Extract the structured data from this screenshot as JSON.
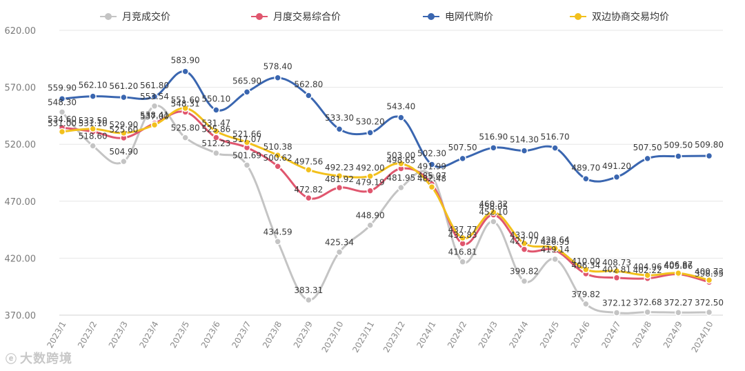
{
  "chart_data": {
    "type": "line",
    "title": "",
    "xlabel": "",
    "ylabel": "",
    "ylim": [
      370,
      620
    ],
    "yticks": [
      "370.00",
      "420.00",
      "470.00",
      "520.00",
      "570.00",
      "620.00"
    ],
    "categories": [
      "2023/1",
      "2023/2",
      "2023/3",
      "2023/4",
      "2023/5",
      "2023/6",
      "2023/7",
      "2023/8",
      "2023/9",
      "2023/10",
      "2023/11",
      "2023/12",
      "2024/1",
      "2024/2",
      "2024/3",
      "2024/4",
      "2024/5",
      "2024/6",
      "2024/7",
      "2024/8",
      "2024/9",
      "2024/10"
    ],
    "legend_position": "top",
    "series": [
      {
        "name": "月竞成交价",
        "color": "#c4c4c4",
        "values": [
          548.3,
          518.6,
          504.9,
          553.54,
          525.8,
          512.23,
          501.69,
          434.59,
          383.31,
          425.34,
          448.9,
          481.95,
          491.99,
          416.81,
          452.1,
          399.82,
          419.14,
          379.82,
          372.12,
          372.68,
          372.27,
          372.5
        ],
        "labels": [
          "548.30",
          "518.60",
          "504.90",
          "553.54",
          "525.80",
          "512.23",
          "501.69",
          "434.59",
          "383.31",
          "425.34",
          "448.90",
          "481.95",
          "491.99",
          "416.81",
          "452.10",
          "399.82",
          "419.14",
          "379.82",
          "372.12",
          "372.68",
          "372.27",
          "372.50"
        ]
      },
      {
        "name": "月度交易综合价",
        "color": "#e0566e",
        "values": [
          534.6,
          531.1,
          525.6,
          538.41,
          548.31,
          525.86,
          517.07,
          500.62,
          472.82,
          481.92,
          479.19,
          498.65,
          485.07,
          432.83,
          458.05,
          427.77,
          426.95,
          406.34,
          402.81,
          402.22,
          405.86,
          398.95
        ],
        "labels": [
          "534.60",
          "531.10",
          "525.60",
          "538.41",
          "548.31",
          "525.86",
          "517.07",
          "500.62",
          "472.82",
          "481.92",
          "479.19",
          "498.65",
          "485.07",
          "432.83",
          "458.05",
          "427.77",
          "426.95",
          "406.34",
          "402.81",
          "402.22",
          "405.86",
          "398.95"
        ]
      },
      {
        "name": "电网代购价",
        "color": "#3a66b0",
        "values": [
          559.9,
          562.1,
          561.2,
          561.8,
          583.9,
          550.1,
          565.9,
          578.4,
          562.8,
          533.3,
          530.2,
          543.4,
          502.3,
          507.5,
          516.9,
          514.3,
          516.7,
          489.7,
          491.2,
          507.5,
          509.5,
          509.8
        ],
        "labels": [
          "559.90",
          "562.10",
          "561.20",
          "561.80",
          "583.90",
          "550.10",
          "565.90",
          "578.40",
          "562.80",
          "533.30",
          "530.20",
          "543.40",
          "502.30",
          "507.50",
          "516.90",
          "514.30",
          "516.70",
          "489.70",
          "491.20",
          "507.50",
          "509.50",
          "509.80"
        ]
      },
      {
        "name": "双边协商交易均价",
        "color": "#f2c01c",
        "values": [
          531.0,
          533.5,
          529.9,
          537.0,
          551.6,
          531.47,
          521.66,
          510.38,
          497.56,
          492.23,
          492.0,
          503.0,
          482.48,
          437.77,
          460.32,
          433.0,
          428.64,
          410.0,
          408.73,
          404.96,
          406.87,
          400.73
        ],
        "labels": [
          "531.00",
          "533.50",
          "529.90",
          "537.00",
          "551.60",
          "531.47",
          "521.66",
          "510.38",
          "497.56",
          "492.23",
          "492.00",
          "503.00",
          "482.48",
          "437.77",
          "460.32",
          "433.00",
          "428.64",
          "410.00",
          "408.73",
          "404.96",
          "406.87",
          "400.73"
        ]
      }
    ]
  },
  "watermark": {
    "logo": "ⓔ",
    "text": "大数跨境"
  }
}
